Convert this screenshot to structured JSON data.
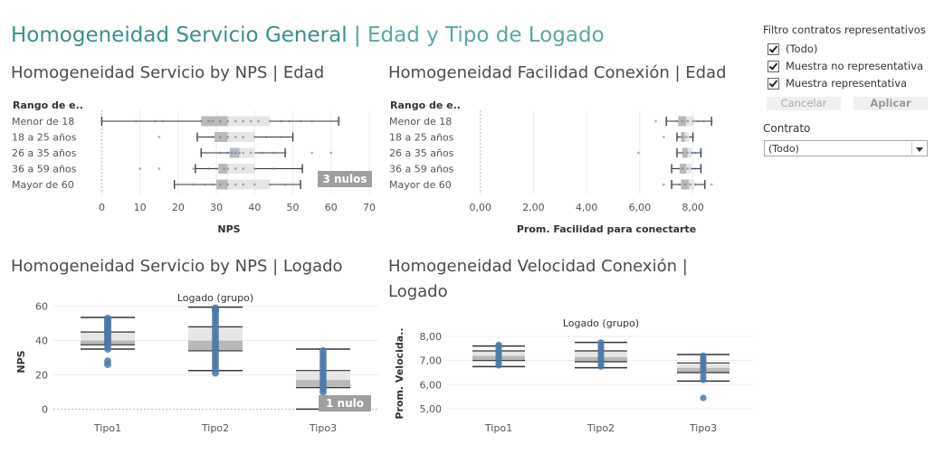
{
  "dashboard": {
    "title_main": "Homogeneidad Servicio General",
    "separator": "|",
    "title_sub": "Edad y Tipo de Logado"
  },
  "filters": {
    "title": "Filtro contratos representativos",
    "options": [
      {
        "label": "(Todo)",
        "checked": true
      },
      {
        "label": "Muestra no representativa",
        "checked": true
      },
      {
        "label": "Muestra representativa",
        "checked": true
      }
    ],
    "cancel_label": "Cancelar",
    "apply_label": "Aplicar",
    "contrato_label": "Contrato",
    "contrato_value": "(Todo)"
  },
  "colors": {
    "point": "#4e79a7",
    "box_dark": "#b9b9b9",
    "box_light": "#e6e6e6",
    "whisker": "#333333",
    "title_teal": "#3a8f8c",
    "badge": "#9f9f9f"
  },
  "chart_data": [
    {
      "id": "nps_edad",
      "type": "boxplot",
      "orientation": "horizontal",
      "title": "Homogeneidad Servicio by NPS | Edad",
      "row_header": "Rango de e..",
      "xlabel": "NPS",
      "xlim": [
        -2,
        70
      ],
      "xticks": [
        0,
        10,
        20,
        30,
        40,
        50,
        60,
        70
      ],
      "categories": [
        "Menor de 18",
        "18 a 25 años",
        "26 a 35 años",
        "36 a 59 años",
        "Mayor de 60"
      ],
      "boxes": [
        {
          "min": 0,
          "q1": 26,
          "median": 33,
          "q3": 44,
          "max": 62
        },
        {
          "min": 25,
          "q1": 29.5,
          "median": 33,
          "q3": 40,
          "max": 50
        },
        {
          "min": 26,
          "q1": 33.5,
          "median": 36,
          "q3": 40,
          "max": 48
        },
        {
          "min": 24.5,
          "q1": 30.5,
          "median": 33,
          "q3": 40,
          "max": 52.5
        },
        {
          "min": 19,
          "q1": 30,
          "median": 33,
          "q3": 44,
          "max": 52
        }
      ],
      "points": [
        [
          0,
          9,
          14,
          16,
          26,
          28,
          29,
          31,
          33,
          35,
          37,
          39,
          41,
          44,
          47,
          49,
          52,
          55,
          62
        ],
        [
          15,
          25,
          29,
          31,
          33,
          35,
          37,
          40,
          43,
          47,
          50
        ],
        [
          26,
          31,
          33,
          34,
          35,
          36,
          37,
          39,
          42,
          45,
          48,
          55,
          60
        ],
        [
          10,
          15,
          24,
          28,
          30,
          32,
          33,
          35,
          37,
          40,
          45,
          52
        ],
        [
          19,
          24,
          27,
          29,
          31,
          33,
          35,
          37,
          40,
          44,
          48,
          52
        ]
      ],
      "null_badge": "3 nulos"
    },
    {
      "id": "facilidad_edad",
      "type": "boxplot",
      "orientation": "horizontal",
      "title": "Homogeneidad Facilidad Conexión | Edad",
      "row_header": "Rango de e..",
      "xlabel": "Prom. Facilidad para conectarte",
      "xlim": [
        -0.4,
        8.9
      ],
      "xticks": [
        0,
        2,
        4,
        6,
        8
      ],
      "xtick_labels": [
        "0,00",
        "2,00",
        "4,00",
        "6,00",
        "8,00"
      ],
      "categories": [
        "Menor de 18",
        "18 a 25 años",
        "26 a 35 años",
        "36 a 59 años",
        "Mayor de 60"
      ],
      "boxes": [
        {
          "min": 7.0,
          "q1": 7.45,
          "median": 7.75,
          "q3": 8.05,
          "max": 8.7
        },
        {
          "min": 7.4,
          "q1": 7.55,
          "median": 7.7,
          "q3": 7.85,
          "max": 8.0
        },
        {
          "min": 7.4,
          "q1": 7.6,
          "median": 7.8,
          "q3": 7.95,
          "max": 8.3
        },
        {
          "min": 7.2,
          "q1": 7.5,
          "median": 7.75,
          "q3": 7.95,
          "max": 8.3
        },
        {
          "min": 7.2,
          "q1": 7.55,
          "median": 7.85,
          "q3": 8.05,
          "max": 8.45
        }
      ],
      "points": [
        [
          6.6,
          7.0,
          7.4,
          7.6,
          7.8,
          8.0,
          8.2,
          8.4,
          8.7
        ],
        [
          6.9,
          7.45,
          7.6,
          7.75,
          7.9,
          8.0
        ],
        [
          5.95,
          7.4,
          7.6,
          7.8,
          7.95,
          8.1,
          8.3
        ],
        [
          7.2,
          7.45,
          7.6,
          7.8,
          7.95,
          8.1,
          8.3
        ],
        [
          6.9,
          7.2,
          7.5,
          7.7,
          7.9,
          8.1,
          8.45,
          8.7
        ]
      ]
    },
    {
      "id": "nps_logado",
      "type": "boxplot",
      "orientation": "vertical",
      "title": "Homogeneidad Servicio by NPS | Logado",
      "header": "Logado (grupo)",
      "ylabel": "NPS",
      "ylim": [
        -3,
        63
      ],
      "yticks": [
        0,
        20,
        40,
        60
      ],
      "categories": [
        "Tipo1",
        "Tipo2",
        "Tipo3"
      ],
      "boxes": [
        {
          "min": 35,
          "q1": 37.5,
          "median": 40,
          "q3": 45,
          "max": 53.5
        },
        {
          "min": 22.5,
          "q1": 34,
          "median": 40,
          "q3": 48,
          "max": 59.5
        },
        {
          "min": 0,
          "q1": 12.5,
          "median": 17,
          "q3": 22.5,
          "max": 35
        }
      ],
      "points": [
        [
          26,
          28,
          35,
          37,
          38,
          39,
          40,
          41,
          42,
          43,
          44,
          45,
          46,
          47,
          48,
          49,
          50,
          51,
          52,
          53
        ],
        [
          21,
          23,
          25,
          27,
          29,
          31,
          33,
          35,
          37,
          39,
          41,
          43,
          45,
          47,
          49,
          51,
          53,
          55,
          57,
          58,
          59
        ],
        [
          5,
          10,
          12,
          14,
          16,
          18,
          20,
          22,
          24,
          26,
          28,
          30,
          32,
          34
        ]
      ],
      "null_badge": "1 nulo"
    },
    {
      "id": "velocidad_logado",
      "type": "boxplot",
      "orientation": "vertical",
      "title": "Homogeneidad Velocidad Conexión | Logado",
      "header": "Logado (grupo)",
      "ylabel": "Prom. Velocida..",
      "ylim": [
        4.85,
        8.15
      ],
      "yticks": [
        5,
        6,
        7,
        8
      ],
      "ytick_labels": [
        "5,00",
        "6,00",
        "7,00",
        "8,00"
      ],
      "categories": [
        "Tipo1",
        "Tipo2",
        "Tipo3"
      ],
      "boxes": [
        {
          "min": 6.75,
          "q1": 7.0,
          "median": 7.2,
          "q3": 7.4,
          "max": 7.6
        },
        {
          "min": 6.7,
          "q1": 6.95,
          "median": 7.15,
          "q3": 7.4,
          "max": 7.75
        },
        {
          "min": 6.15,
          "q1": 6.5,
          "median": 6.7,
          "q3": 6.9,
          "max": 7.25
        }
      ],
      "points": [
        [
          6.8,
          6.9,
          7.0,
          7.1,
          7.2,
          7.3,
          7.4,
          7.5,
          7.6,
          7.65
        ],
        [
          6.75,
          6.85,
          6.95,
          7.05,
          7.15,
          7.25,
          7.35,
          7.45,
          7.55,
          7.65,
          7.75
        ],
        [
          5.45,
          6.2,
          6.35,
          6.5,
          6.6,
          6.7,
          6.8,
          6.9,
          7.0,
          7.1,
          7.2
        ]
      ]
    }
  ]
}
